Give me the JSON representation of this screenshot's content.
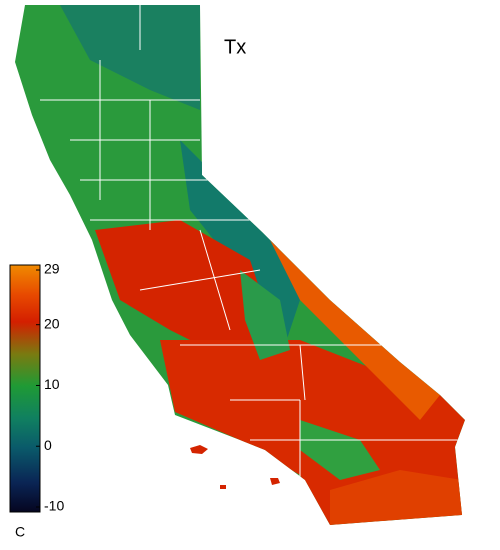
{
  "map": {
    "title": "Tx",
    "colorbar": {
      "unit": "C",
      "range": [
        -10,
        29
      ],
      "ticks": [
        29,
        20,
        10,
        0,
        -10
      ]
    }
  }
}
